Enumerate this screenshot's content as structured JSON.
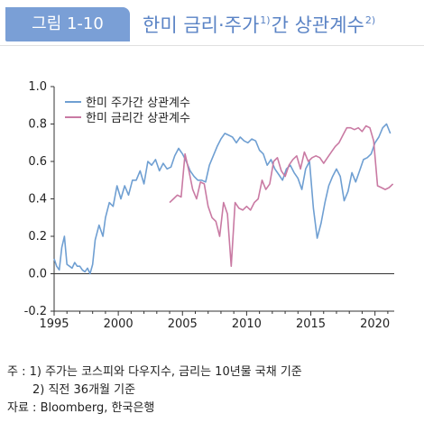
{
  "header": {
    "badge": "그림 1-10",
    "title_main": "한미 금리·주가",
    "title_sup1": "1)",
    "title_mid": "간 상관계수",
    "title_sup2": "2)"
  },
  "notes": {
    "note1": "주 : 1) 주가는 코스피와 다우지수, 금리는 10년물 국채 기준",
    "note2": "2) 직전 36개월 기준",
    "source": "자료 : Bloomberg, 한국은행"
  },
  "colors": {
    "stock": "#6f9fd2",
    "rate": "#c97aa3",
    "badge": "#7a9fd6",
    "title": "#5a83c5"
  },
  "chart_data": {
    "type": "line",
    "title": "",
    "xlabel": "",
    "ylabel": "",
    "xlim": [
      1995,
      2021.5
    ],
    "ylim": [
      -0.2,
      1.0
    ],
    "x_ticks": [
      1995,
      2000,
      2005,
      2010,
      2015,
      2020
    ],
    "y_ticks": [
      -0.2,
      0.0,
      0.2,
      0.4,
      0.6,
      0.8,
      1.0
    ],
    "y_tick_labels": [
      "-0.2",
      "0.0",
      "0.2",
      "0.4",
      "0.6",
      "0.8",
      "1.0"
    ],
    "legend_position": "top-left",
    "series": [
      {
        "name": "한미 주가간 상관계수",
        "color": "#6f9fd2",
        "x": [
          1995.0,
          1995.2,
          1995.4,
          1995.6,
          1995.8,
          1996.0,
          1996.2,
          1996.4,
          1996.6,
          1996.8,
          1997.0,
          1997.2,
          1997.4,
          1997.6,
          1997.8,
          1998.0,
          1998.2,
          1998.5,
          1998.8,
          1999.0,
          1999.3,
          1999.6,
          1999.9,
          2000.2,
          2000.5,
          2000.8,
          2001.1,
          2001.4,
          2001.7,
          2002.0,
          2002.3,
          2002.6,
          2002.9,
          2003.2,
          2003.5,
          2003.8,
          2004.1,
          2004.4,
          2004.7,
          2005.0,
          2005.3,
          2005.6,
          2005.9,
          2006.2,
          2006.5,
          2006.8,
          2007.1,
          2007.4,
          2007.7,
          2008.0,
          2008.3,
          2008.6,
          2008.9,
          2009.2,
          2009.5,
          2009.8,
          2010.1,
          2010.4,
          2010.7,
          2011.0,
          2011.3,
          2011.6,
          2011.9,
          2012.2,
          2012.5,
          2012.8,
          2013.1,
          2013.4,
          2013.7,
          2014.0,
          2014.3,
          2014.6,
          2014.9,
          2015.2,
          2015.5,
          2015.8,
          2016.1,
          2016.4,
          2016.7,
          2017.0,
          2017.3,
          2017.6,
          2017.9,
          2018.2,
          2018.5,
          2018.8,
          2019.1,
          2019.4,
          2019.7,
          2020.0,
          2020.3,
          2020.6,
          2020.9,
          2021.2
        ],
        "y": [
          0.08,
          0.04,
          0.02,
          0.14,
          0.2,
          0.05,
          0.04,
          0.03,
          0.06,
          0.04,
          0.04,
          0.02,
          0.01,
          0.03,
          0.0,
          0.05,
          0.18,
          0.26,
          0.2,
          0.3,
          0.38,
          0.36,
          0.47,
          0.4,
          0.47,
          0.42,
          0.5,
          0.5,
          0.55,
          0.48,
          0.6,
          0.58,
          0.61,
          0.55,
          0.59,
          0.56,
          0.57,
          0.63,
          0.67,
          0.64,
          0.6,
          0.55,
          0.52,
          0.5,
          0.5,
          0.49,
          0.58,
          0.63,
          0.68,
          0.72,
          0.75,
          0.74,
          0.73,
          0.7,
          0.73,
          0.71,
          0.7,
          0.72,
          0.71,
          0.66,
          0.64,
          0.58,
          0.61,
          0.56,
          0.53,
          0.5,
          0.56,
          0.58,
          0.54,
          0.51,
          0.45,
          0.56,
          0.6,
          0.35,
          0.19,
          0.27,
          0.38,
          0.47,
          0.52,
          0.56,
          0.52,
          0.39,
          0.44,
          0.54,
          0.49,
          0.55,
          0.61,
          0.62,
          0.64,
          0.7,
          0.73,
          0.78,
          0.8,
          0.75
        ]
      },
      {
        "name": "한미 금리간 상관계수",
        "color": "#c97aa3",
        "x": [
          2004.0,
          2004.3,
          2004.6,
          2004.9,
          2005.2,
          2005.5,
          2005.8,
          2006.1,
          2006.4,
          2006.7,
          2007.0,
          2007.3,
          2007.6,
          2007.9,
          2008.2,
          2008.5,
          2008.8,
          2009.1,
          2009.4,
          2009.7,
          2010.0,
          2010.3,
          2010.6,
          2010.9,
          2011.2,
          2011.5,
          2011.8,
          2012.1,
          2012.4,
          2012.7,
          2013.0,
          2013.3,
          2013.6,
          2013.9,
          2014.2,
          2014.5,
          2014.8,
          2015.1,
          2015.4,
          2015.7,
          2016.0,
          2016.3,
          2016.6,
          2016.9,
          2017.2,
          2017.5,
          2017.8,
          2018.1,
          2018.4,
          2018.7,
          2019.0,
          2019.3,
          2019.6,
          2019.9,
          2020.2,
          2020.5,
          2020.8,
          2021.1,
          2021.4
        ],
        "y": [
          0.38,
          0.4,
          0.42,
          0.41,
          0.64,
          0.55,
          0.45,
          0.4,
          0.49,
          0.48,
          0.36,
          0.3,
          0.28,
          0.2,
          0.38,
          0.32,
          0.04,
          0.38,
          0.35,
          0.34,
          0.36,
          0.34,
          0.38,
          0.4,
          0.5,
          0.45,
          0.48,
          0.6,
          0.62,
          0.55,
          0.52,
          0.58,
          0.61,
          0.63,
          0.56,
          0.65,
          0.6,
          0.62,
          0.63,
          0.62,
          0.59,
          0.62,
          0.65,
          0.68,
          0.7,
          0.74,
          0.78,
          0.78,
          0.77,
          0.78,
          0.76,
          0.79,
          0.78,
          0.71,
          0.47,
          0.46,
          0.45,
          0.46,
          0.48
        ]
      }
    ]
  }
}
